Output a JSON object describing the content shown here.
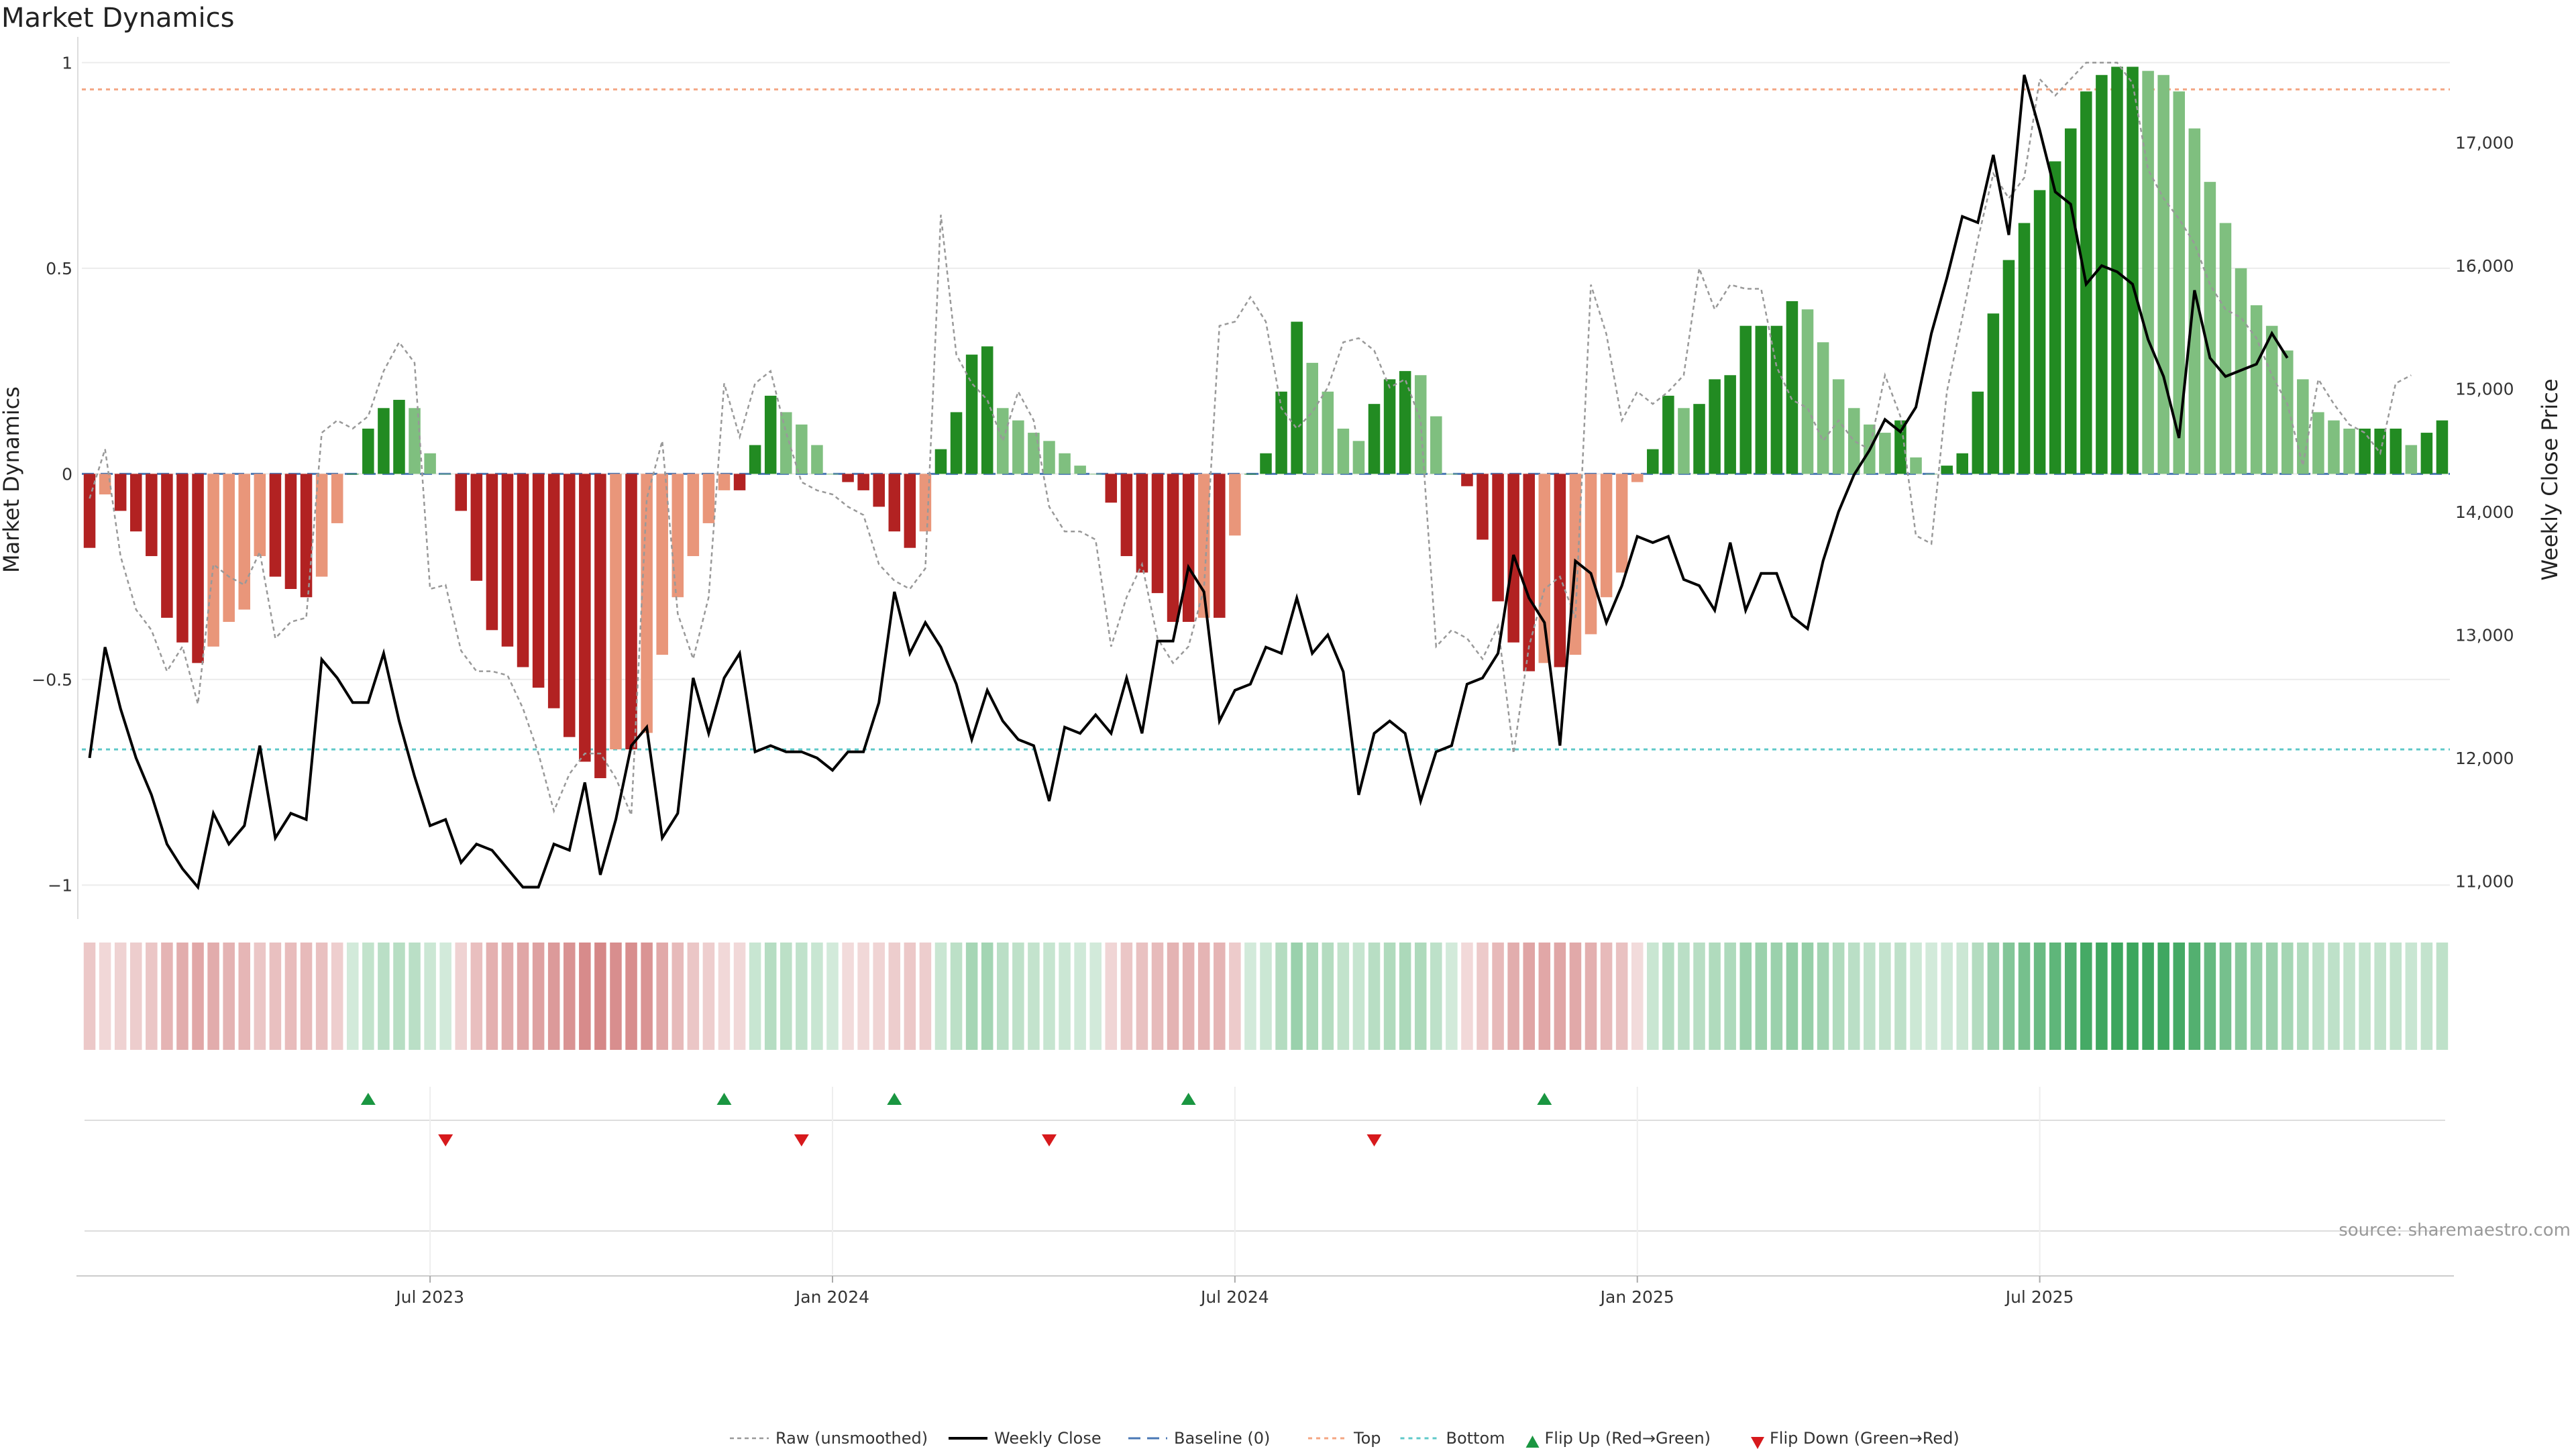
{
  "chart_data": {
    "type": "bar",
    "title": "Market Dynamics",
    "ylabel_left": "Market Dynamics",
    "ylabel_right": "Weekly Close Price",
    "ylim_left": [
      -1.05,
      1.03
    ],
    "ylim_right": [
      10800,
      17750
    ],
    "left_ticks": [
      {
        "value": 1,
        "label": "1"
      },
      {
        "value": 0.5,
        "label": "0.5"
      },
      {
        "value": 0,
        "label": "0"
      },
      {
        "value": -0.5,
        "label": "−0.5"
      },
      {
        "value": -1,
        "label": "−1"
      }
    ],
    "right_ticks": [
      {
        "value": 17000,
        "label": "17,000"
      },
      {
        "value": 16000,
        "label": "16,000"
      },
      {
        "value": 15000,
        "label": "15,000"
      },
      {
        "value": 14000,
        "label": "14,000"
      },
      {
        "value": 13000,
        "label": "13,000"
      },
      {
        "value": 12000,
        "label": "12,000"
      },
      {
        "value": 11000,
        "label": "11,000"
      }
    ],
    "x_ticks": [
      {
        "index": 22,
        "label": "Jul 2023"
      },
      {
        "index": 48,
        "label": "Jan 2024"
      },
      {
        "index": 74,
        "label": "Jul 2024"
      },
      {
        "index": 100,
        "label": "Jan 2025"
      },
      {
        "index": 126,
        "label": "Jul 2025"
      }
    ],
    "top_level": 0.935,
    "bottom_level": -0.67,
    "baseline": 0,
    "colors": {
      "strong_red": "#b22222",
      "light_red": "#e9967a",
      "strong_green": "#228b22",
      "light_green": "#7fbf7f",
      "close_line": "#000000",
      "raw_line": "#999999",
      "baseline": "#4a78b5",
      "top": "#f4a582",
      "bottom": "#5ec8c8",
      "flip_up": "#1a9641",
      "flip_down": "#d7191c"
    },
    "series": [
      {
        "name": "Market Dynamics (smoothed)",
        "values": [
          -0.18,
          -0.05,
          -0.09,
          -0.14,
          -0.2,
          -0.35,
          -0.41,
          -0.46,
          -0.42,
          -0.36,
          -0.33,
          -0.2,
          -0.25,
          -0.28,
          -0.3,
          -0.25,
          -0.12,
          0,
          0.11,
          0.16,
          0.18,
          0.16,
          0.05,
          0,
          -0.09,
          -0.26,
          -0.38,
          -0.42,
          -0.47,
          -0.52,
          -0.57,
          -0.64,
          -0.7,
          -0.74,
          -0.67,
          -0.67,
          -0.63,
          -0.44,
          -0.3,
          -0.2,
          -0.12,
          -0.04,
          -0.04,
          0.07,
          0.19,
          0.15,
          0.12,
          0.07,
          0,
          -0.02,
          -0.04,
          -0.08,
          -0.14,
          -0.18,
          -0.14,
          0.06,
          0.15,
          0.29,
          0.31,
          0.16,
          0.13,
          0.1,
          0.08,
          0.05,
          0.02,
          0,
          -0.07,
          -0.2,
          -0.24,
          -0.29,
          -0.36,
          -0.36,
          -0.35,
          -0.35,
          -0.15,
          0,
          0.05,
          0.2,
          0.37,
          0.27,
          0.2,
          0.11,
          0.08,
          0.17,
          0.23,
          0.25,
          0.24,
          0.14,
          0,
          -0.03,
          -0.16,
          -0.31,
          -0.41,
          -0.48,
          -0.46,
          -0.47,
          -0.44,
          -0.39,
          -0.3,
          -0.24,
          -0.02,
          0.06,
          0.19,
          0.16,
          0.17,
          0.23,
          0.24,
          0.36,
          0.36,
          0.36,
          0.42,
          0.4,
          0.32,
          0.23,
          0.16,
          0.12,
          0.1,
          0.13,
          0.04,
          0,
          0.02,
          0.05,
          0.2,
          0.39,
          0.52,
          0.61,
          0.69,
          0.76,
          0.84,
          0.93,
          0.97,
          0.99,
          0.99,
          0.98,
          0.97,
          0.93,
          0.84,
          0.71,
          0.61,
          0.5,
          0.41,
          0.36,
          0.3,
          0.23,
          0.15,
          0.13,
          0.11,
          0.11,
          0.11,
          0.11,
          0.07,
          0.1,
          0.13
        ]
      },
      {
        "name": "Raw (unsmoothed)",
        "values": [
          -0.06,
          0.06,
          -0.2,
          -0.33,
          -0.38,
          -0.48,
          -0.42,
          -0.56,
          -0.22,
          -0.25,
          -0.27,
          -0.19,
          -0.4,
          -0.36,
          -0.35,
          0.1,
          0.13,
          0.11,
          0.14,
          0.25,
          0.32,
          0.27,
          -0.28,
          -0.27,
          -0.43,
          -0.48,
          -0.48,
          -0.49,
          -0.57,
          -0.68,
          -0.82,
          -0.73,
          -0.68,
          -0.68,
          -0.74,
          -0.83,
          -0.06,
          0.08,
          -0.34,
          -0.45,
          -0.3,
          0.22,
          0.09,
          0.22,
          0.25,
          0.1,
          -0.02,
          -0.04,
          -0.05,
          -0.08,
          -0.1,
          -0.22,
          -0.26,
          -0.28,
          -0.23,
          0.63,
          0.29,
          0.22,
          0.18,
          0.08,
          0.2,
          0.13,
          -0.08,
          -0.14,
          -0.14,
          -0.16,
          -0.42,
          -0.3,
          -0.22,
          -0.4,
          -0.46,
          -0.42,
          -0.28,
          0.36,
          0.37,
          0.43,
          0.37,
          0.16,
          0.11,
          0.15,
          0.21,
          0.32,
          0.33,
          0.3,
          0.21,
          0.23,
          0.13,
          -0.42,
          -0.38,
          -0.4,
          -0.45,
          -0.37,
          -0.68,
          -0.42,
          -0.28,
          -0.25,
          -0.35,
          0.46,
          0.34,
          0.13,
          0.2,
          0.17,
          0.2,
          0.24,
          0.5,
          0.4,
          0.46,
          0.45,
          0.45,
          0.26,
          0.18,
          0.16,
          0.08,
          0.13,
          0.08,
          0.06,
          0.24,
          0.14,
          -0.15,
          -0.17,
          0.2,
          0.38,
          0.57,
          0.73,
          0.67,
          0.72,
          0.96,
          0.92,
          0.96,
          1.0,
          1.0,
          1.0,
          0.95,
          0.74,
          0.67,
          0.62,
          0.56,
          0.46,
          0.4,
          0.38,
          0.33,
          0.24,
          0.17,
          0.02,
          0.23,
          0.17,
          0.12,
          0.1,
          0.05,
          0.22,
          0.24
        ]
      },
      {
        "name": "Weekly Close",
        "values": [
          12000,
          12900,
          12400,
          12000,
          11700,
          11300,
          11100,
          10950,
          11550,
          11300,
          11450,
          12100,
          11350,
          11550,
          11500,
          12800,
          12650,
          12450,
          12450,
          12850,
          12300,
          11850,
          11450,
          11500,
          11150,
          11300,
          11250,
          11100,
          10950,
          10950,
          11300,
          11250,
          11800,
          11050,
          11500,
          12100,
          12250,
          11350,
          11550,
          12650,
          12200,
          12650,
          12850,
          12050,
          12100,
          12050,
          12050,
          12000,
          11900,
          12050,
          12050,
          12450,
          13350,
          12850,
          13100,
          12900,
          12600,
          12150,
          12550,
          12300,
          12150,
          12100,
          11650,
          12250,
          12200,
          12350,
          12200,
          12650,
          12200,
          12950,
          12950,
          13550,
          13350,
          12300,
          12550,
          12600,
          12900,
          12850,
          13300,
          12850,
          13000,
          12700,
          11700,
          12200,
          12300,
          12200,
          11650,
          12050,
          12100,
          12600,
          12650,
          12850,
          13650,
          13300,
          13100,
          12100,
          13600,
          13500,
          13100,
          13400,
          13800,
          13750,
          13800,
          13450,
          13400,
          13200,
          13750,
          13200,
          13500,
          13500,
          13150,
          13050,
          13600,
          14000,
          14300,
          14500,
          14750,
          14650,
          14850,
          15450,
          15900,
          16400,
          16350,
          16900,
          16250,
          17550,
          17100,
          16600,
          16500,
          15850,
          16000,
          15950,
          15850,
          15400,
          15100,
          14600,
          15800,
          15250,
          15100,
          15150,
          15200,
          15450,
          15250
        ]
      }
    ],
    "heat_strip": {
      "label": "intensity strip mirrors smoothed series"
    },
    "flip_up_indices": [
      18,
      41,
      52,
      71,
      94
    ],
    "flip_down_indices": [
      23,
      46,
      62,
      83
    ],
    "legend": [
      {
        "key": "raw",
        "label": "Raw (unsmoothed)"
      },
      {
        "key": "close",
        "label": "Weekly Close"
      },
      {
        "key": "baseline",
        "label": "Baseline (0)"
      },
      {
        "key": "top",
        "label": "Top"
      },
      {
        "key": "bottom",
        "label": "Bottom"
      },
      {
        "key": "flip_up",
        "label": "Flip Up (Red→Green)"
      },
      {
        "key": "flip_down",
        "label": "Flip Down (Green→Red)"
      }
    ],
    "source": "source: sharemaestro.com"
  }
}
